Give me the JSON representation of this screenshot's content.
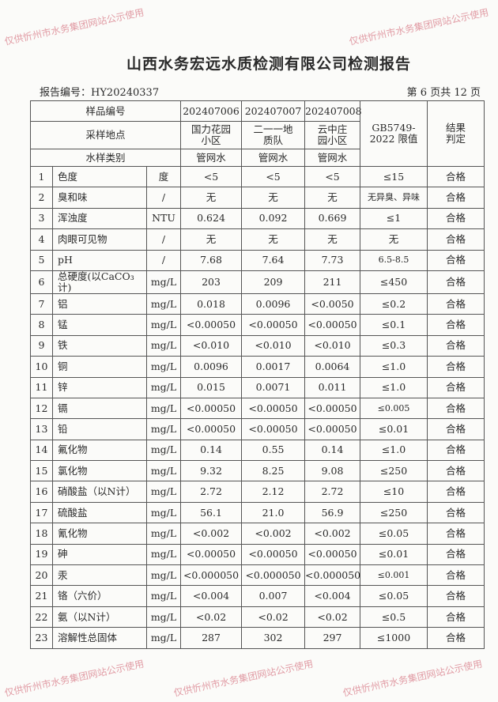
{
  "title": "山西水务宏远水质检测有限公司检测报告",
  "report_no": "报告编号：HY20240337",
  "page_info": "第 6 页共 12 页",
  "watermark": "仅供忻州市水务集团网站公示使用",
  "header": {
    "sample_no_label": "样品编号",
    "site_label": "采样地点",
    "type_label": "水样类别",
    "limit_label": "GB5749-2022 限值",
    "result_label": "结果判定",
    "samples": [
      {
        "no": "202407006",
        "site": "国力花园小区",
        "type": "管网水"
      },
      {
        "no": "202407007",
        "site": "二一一地质队",
        "type": "管网水"
      },
      {
        "no": "202407008",
        "site": "云中庄园小区",
        "type": "管网水"
      }
    ]
  },
  "rows": [
    {
      "n": "1",
      "item": "色度",
      "unit": "度",
      "v": [
        "<5",
        "<5",
        "<5"
      ],
      "limit": "≤15",
      "res": "合格"
    },
    {
      "n": "2",
      "item": "臭和味",
      "unit": "/",
      "v": [
        "无",
        "无",
        "无"
      ],
      "limit": "无异臭、异味",
      "res": "合格"
    },
    {
      "n": "3",
      "item": "浑浊度",
      "unit": "NTU",
      "v": [
        "0.624",
        "0.092",
        "0.669"
      ],
      "limit": "≤1",
      "res": "合格"
    },
    {
      "n": "4",
      "item": "肉眼可见物",
      "unit": "/",
      "v": [
        "无",
        "无",
        "无"
      ],
      "limit": "无",
      "res": "合格"
    },
    {
      "n": "5",
      "item": "pH",
      "unit": "/",
      "v": [
        "7.68",
        "7.64",
        "7.73"
      ],
      "limit": "6.5-8.5",
      "res": "合格"
    },
    {
      "n": "6",
      "item": "总硬度(以CaCO₃计)",
      "unit": "mg/L",
      "v": [
        "203",
        "209",
        "211"
      ],
      "limit": "≤450",
      "res": "合格"
    },
    {
      "n": "7",
      "item": "铝",
      "unit": "mg/L",
      "v": [
        "0.018",
        "0.0096",
        "<0.0050"
      ],
      "limit": "≤0.2",
      "res": "合格"
    },
    {
      "n": "8",
      "item": "锰",
      "unit": "mg/L",
      "v": [
        "<0.00050",
        "<0.00050",
        "<0.00050"
      ],
      "limit": "≤0.1",
      "res": "合格"
    },
    {
      "n": "9",
      "item": "铁",
      "unit": "mg/L",
      "v": [
        "<0.010",
        "<0.010",
        "<0.010"
      ],
      "limit": "≤0.3",
      "res": "合格"
    },
    {
      "n": "10",
      "item": "铜",
      "unit": "mg/L",
      "v": [
        "0.0096",
        "0.0017",
        "0.0064"
      ],
      "limit": "≤1.0",
      "res": "合格"
    },
    {
      "n": "11",
      "item": "锌",
      "unit": "mg/L",
      "v": [
        "0.015",
        "0.0071",
        "0.011"
      ],
      "limit": "≤1.0",
      "res": "合格"
    },
    {
      "n": "12",
      "item": "镉",
      "unit": "mg/L",
      "v": [
        "<0.00050",
        "<0.00050",
        "<0.00050"
      ],
      "limit": "≤0.005",
      "res": "合格"
    },
    {
      "n": "13",
      "item": "铅",
      "unit": "mg/L",
      "v": [
        "<0.00050",
        "<0.00050",
        "<0.00050"
      ],
      "limit": "≤0.01",
      "res": "合格"
    },
    {
      "n": "14",
      "item": "氟化物",
      "unit": "mg/L",
      "v": [
        "0.14",
        "0.55",
        "0.14"
      ],
      "limit": "≤1.0",
      "res": "合格"
    },
    {
      "n": "15",
      "item": "氯化物",
      "unit": "mg/L",
      "v": [
        "9.32",
        "8.25",
        "9.08"
      ],
      "limit": "≤250",
      "res": "合格"
    },
    {
      "n": "16",
      "item": "硝酸盐（以N计）",
      "unit": "mg/L",
      "v": [
        "2.72",
        "2.12",
        "2.72"
      ],
      "limit": "≤10",
      "res": "合格"
    },
    {
      "n": "17",
      "item": "硫酸盐",
      "unit": "mg/L",
      "v": [
        "56.1",
        "21.0",
        "56.9"
      ],
      "limit": "≤250",
      "res": "合格"
    },
    {
      "n": "18",
      "item": "氰化物",
      "unit": "mg/L",
      "v": [
        "<0.002",
        "<0.002",
        "<0.002"
      ],
      "limit": "≤0.05",
      "res": "合格"
    },
    {
      "n": "19",
      "item": "砷",
      "unit": "mg/L",
      "v": [
        "<0.00050",
        "<0.00050",
        "<0.00050"
      ],
      "limit": "≤0.01",
      "res": "合格"
    },
    {
      "n": "20",
      "item": "汞",
      "unit": "mg/L",
      "v": [
        "<0.000050",
        "<0.000050",
        "<0.000050"
      ],
      "limit": "≤0.001",
      "res": "合格"
    },
    {
      "n": "21",
      "item": "铬（六价）",
      "unit": "mg/L",
      "v": [
        "<0.004",
        "0.007",
        "<0.004"
      ],
      "limit": "≤0.05",
      "res": "合格"
    },
    {
      "n": "22",
      "item": "氨（以N计）",
      "unit": "mg/L",
      "v": [
        "<0.02",
        "<0.02",
        "<0.02"
      ],
      "limit": "≤0.5",
      "res": "合格"
    },
    {
      "n": "23",
      "item": "溶解性总固体",
      "unit": "mg/L",
      "v": [
        "287",
        "302",
        "297"
      ],
      "limit": "≤1000",
      "res": "合格"
    }
  ]
}
